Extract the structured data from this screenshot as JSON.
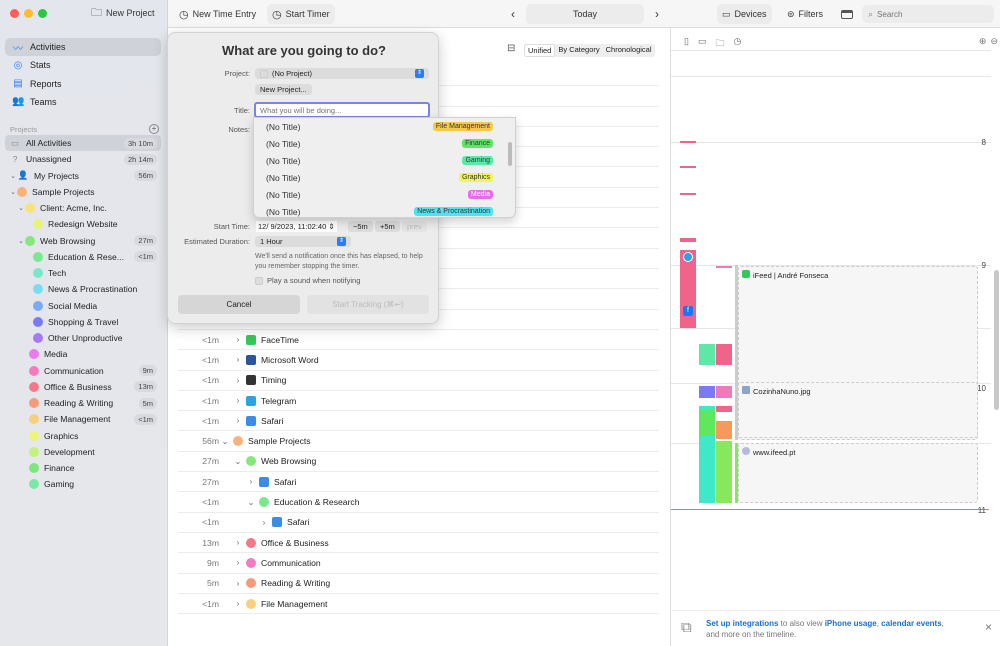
{
  "toolbar": {
    "new_project": "New Project",
    "new_time_entry": "New Time Entry",
    "start_timer": "Start Timer",
    "date": "Today",
    "devices": "Devices",
    "filters": "Filters",
    "search_placeholder": "Search"
  },
  "sidebar": {
    "nav": [
      {
        "label": "Activities",
        "icon": "activity-icon"
      },
      {
        "label": "Stats",
        "icon": "stats-icon"
      },
      {
        "label": "Reports",
        "icon": "reports-icon"
      },
      {
        "label": "Teams",
        "icon": "teams-icon"
      }
    ],
    "projects_header": "Projects",
    "tree": [
      {
        "label": "All Activities",
        "time": "3h 10m",
        "level": 0,
        "color": "",
        "kind": "all"
      },
      {
        "label": "Unassigned",
        "time": "2h 14m",
        "level": 0,
        "color": "",
        "kind": "unassigned"
      },
      {
        "label": "My Projects",
        "time": "56m",
        "level": 0,
        "color": "",
        "kind": "user",
        "expanded": true
      },
      {
        "label": "Sample Projects",
        "time": "",
        "level": 1,
        "color": "#f9b27a",
        "expanded": true
      },
      {
        "label": "Client: Acme, Inc.",
        "time": "",
        "level": 2,
        "color": "#f8e27a",
        "expanded": true
      },
      {
        "label": "Redesign Website",
        "time": "",
        "level": 3,
        "color": "#e6f27a"
      },
      {
        "label": "Web Browsing",
        "time": "27m",
        "level": 2,
        "color": "#86e87a",
        "expanded": true
      },
      {
        "label": "Education & Rese...",
        "time": "<1m",
        "level": 3,
        "color": "#7ae88f"
      },
      {
        "label": "Tech",
        "time": "",
        "level": 3,
        "color": "#7ae8c8"
      },
      {
        "label": "News & Procrastination",
        "time": "",
        "level": 3,
        "color": "#7adcf0"
      },
      {
        "label": "Social Media",
        "time": "",
        "level": 3,
        "color": "#7aaaf5"
      },
      {
        "label": "Shopping & Travel",
        "time": "",
        "level": 3,
        "color": "#7a7af5"
      },
      {
        "label": "Other Unproductive",
        "time": "",
        "level": 3,
        "color": "#a77af5"
      },
      {
        "label": "Media",
        "time": "",
        "level": 1.5,
        "color": "#ea7af0"
      },
      {
        "label": "Communication",
        "time": "9m",
        "level": 1.5,
        "color": "#f57ac0"
      },
      {
        "label": "Office & Business",
        "time": "13m",
        "level": 1.5,
        "color": "#f5788a"
      },
      {
        "label": "Reading & Writing",
        "time": "5m",
        "level": 1.5,
        "color": "#f59a7a"
      },
      {
        "label": "File Management",
        "time": "<1m",
        "level": 1.5,
        "color": "#f8cf7a"
      },
      {
        "label": "Graphics",
        "time": "",
        "level": 1.5,
        "color": "#eef47a"
      },
      {
        "label": "Development",
        "time": "",
        "level": 1.5,
        "color": "#c4f27a"
      },
      {
        "label": "Finance",
        "time": "",
        "level": 1.5,
        "color": "#7ae87a"
      },
      {
        "label": "Gaming",
        "time": "",
        "level": 1.5,
        "color": "#7ae8a8"
      }
    ]
  },
  "view_modes": [
    "Unified",
    "By Category",
    "Chronological"
  ],
  "list": [
    {
      "time": "<1m",
      "label": "FaceTime",
      "level": 0,
      "type": "app",
      "color": "#34c759"
    },
    {
      "time": "<1m",
      "label": "Microsoft Word",
      "level": 0,
      "type": "app",
      "color": "#2b579a"
    },
    {
      "time": "<1m",
      "label": "Timing",
      "level": 0,
      "type": "app",
      "color": "#333"
    },
    {
      "time": "<1m",
      "label": "Telegram",
      "level": 0,
      "type": "app",
      "color": "#2aa3e0"
    },
    {
      "time": "<1m",
      "label": "Safari",
      "level": 0,
      "type": "app",
      "color": "#3a8ee6"
    },
    {
      "time": "56m",
      "label": "Sample Projects",
      "level": -1,
      "type": "project",
      "color": "#f9b27a",
      "expanded": true
    },
    {
      "time": "27m",
      "label": "Web Browsing",
      "level": 0,
      "type": "project",
      "color": "#86e87a",
      "expanded": true
    },
    {
      "time": "27m",
      "label": "Safari",
      "level": 1,
      "type": "app",
      "color": "#3a8ee6"
    },
    {
      "time": "<1m",
      "label": "Education & Research",
      "level": 1,
      "type": "project",
      "color": "#7ae88f",
      "expanded": true
    },
    {
      "time": "<1m",
      "label": "Safari",
      "level": 2,
      "type": "app",
      "color": "#3a8ee6"
    },
    {
      "time": "13m",
      "label": "Office & Business",
      "level": 0,
      "type": "project",
      "color": "#f5788a"
    },
    {
      "time": "9m",
      "label": "Communication",
      "level": 0,
      "type": "project",
      "color": "#f57ac0"
    },
    {
      "time": "5m",
      "label": "Reading & Writing",
      "level": 0,
      "type": "project",
      "color": "#f59a7a"
    },
    {
      "time": "<1m",
      "label": "File Management",
      "level": 0,
      "type": "project",
      "color": "#f8cf7a"
    }
  ],
  "popover": {
    "title": "What are you going to do?",
    "project_label": "Project:",
    "project_value": "(No Project)",
    "new_project": "New Project...",
    "title_label": "Title:",
    "title_placeholder": "What you will be doing...",
    "notes_label": "Notes:",
    "start_time_label": "Start Time:",
    "start_time": "12/  9/2023, 11:02:40",
    "minus5": "−5m",
    "plus5": "+5m",
    "prev": "prev",
    "duration_label": "Estimated Duration:",
    "duration": "1 Hour",
    "hint": "We'll send a notification once this has elapsed, to help you remember stopping the timer.",
    "sound_label": "Play a sound when notifying",
    "cancel": "Cancel",
    "start": "Start Tracking (⌘↩)"
  },
  "suggestions": [
    {
      "title": "(No Title)",
      "tag": "File Management",
      "color": "#f9c74f"
    },
    {
      "title": "(No Title)",
      "tag": "Finance",
      "color": "#5ee85e"
    },
    {
      "title": "(No Title)",
      "tag": "Gaming",
      "color": "#5ee8a8"
    },
    {
      "title": "(No Title)",
      "tag": "Graphics",
      "color": "#eef45a"
    },
    {
      "title": "(No Title)",
      "tag": "Media",
      "color": "#ea6af0"
    },
    {
      "title": "(No Title)",
      "tag": "News & Procrastination",
      "color": "#4fe2f0"
    }
  ],
  "timeline": {
    "hours": [
      "8",
      "9",
      "10",
      "11"
    ],
    "events": [
      {
        "title": "iFeed | André Fonseca"
      },
      {
        "title": "CozinhaNuno.jpg"
      },
      {
        "title": "www.ifeed.pt"
      }
    ]
  },
  "banner": {
    "link1": "Set up integrations",
    "text1": " to also view ",
    "link2": "iPhone usage",
    "sep": ", ",
    "link3": "calendar events",
    "text2": ", and more on the timeline."
  }
}
